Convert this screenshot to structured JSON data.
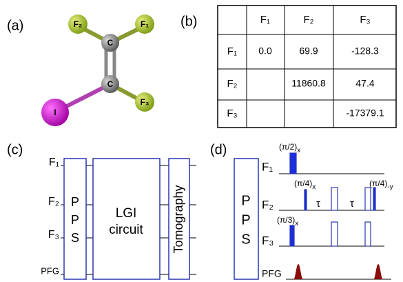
{
  "panels": {
    "a": "(a)",
    "b": "(b)",
    "c": "(c)",
    "d": "(d)"
  },
  "molecule": {
    "atoms": [
      "F₂",
      "F₁",
      "C",
      "C",
      "F₃",
      "I"
    ]
  },
  "table": {
    "headers": [
      "F₁",
      "F₂",
      "F₃"
    ],
    "rows": [
      {
        "label": "F₁",
        "cells": [
          "0.0",
          "69.9",
          "-128.3"
        ]
      },
      {
        "label": "F₂",
        "cells": [
          null,
          "11860.8",
          "47.4"
        ]
      },
      {
        "label": "F₃",
        "cells": [
          null,
          null,
          "-17379.1"
        ]
      }
    ]
  },
  "circuit": {
    "lines": [
      "F₁",
      "F₂",
      "F₃",
      "PFG"
    ],
    "pps": [
      "P",
      "P",
      "S"
    ],
    "lgi": [
      "LGI",
      "circuit"
    ],
    "tomography": "Tomography"
  },
  "sequence": {
    "pps": [
      "P",
      "P",
      "S"
    ],
    "lines": [
      "F₁",
      "F₂",
      "F₃",
      "PFG"
    ],
    "pulses": [
      {
        "angle": "(π/2)",
        "phase": "x"
      },
      {
        "angle": "(π/4)",
        "phase": "x"
      },
      {
        "angle": "(π/4)",
        "phase": "-y"
      },
      {
        "angle": "(π/3)",
        "phase": "x"
      }
    ],
    "delays": [
      "τ",
      "τ"
    ]
  }
}
